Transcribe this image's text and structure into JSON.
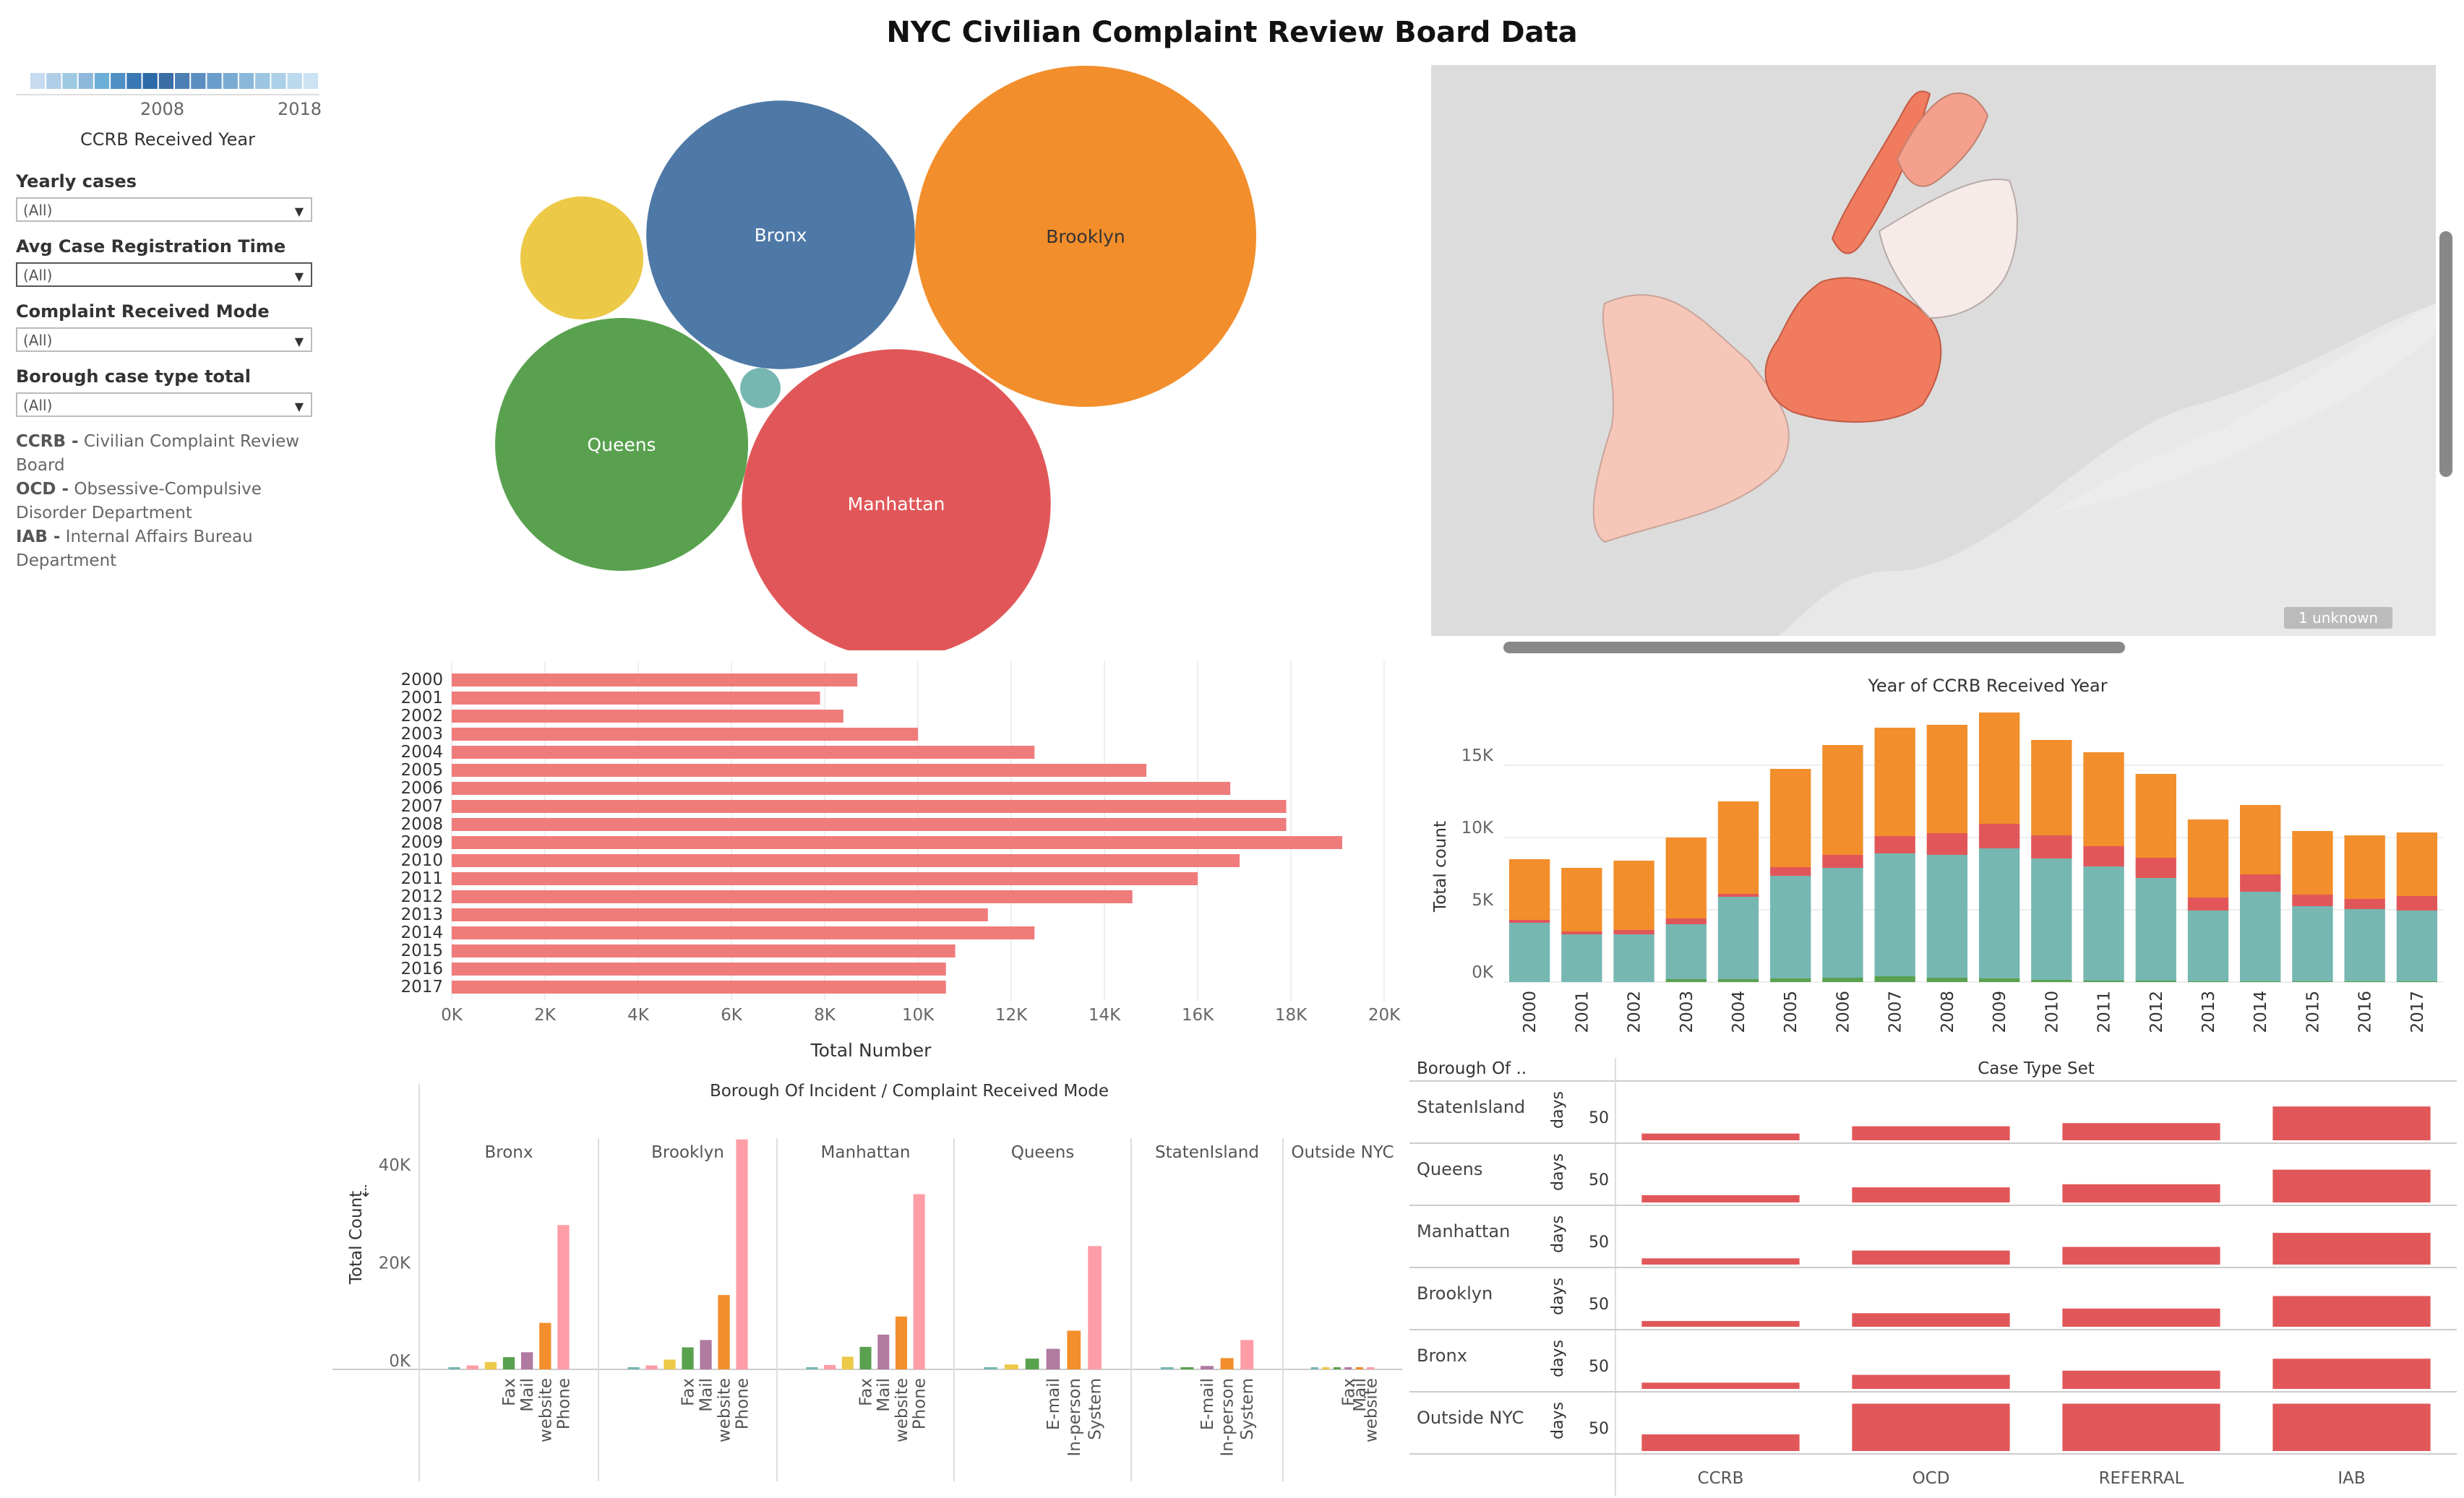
{
  "dashboard": {
    "title": "NYC Civilian Complaint Review Board Data"
  },
  "sidebar": {
    "year_slider": {
      "min_label": "2008",
      "max_label": "2018",
      "title": "CCRB Received Year",
      "colors": [
        "#c6dbef",
        "#b0cde8",
        "#9ecae1",
        "#8db8db",
        "#6baed6",
        "#4f8fc4",
        "#3a77b5",
        "#2c6aa8",
        "#3a6ea5",
        "#4d7fb5",
        "#5b8ec0",
        "#6a9dca",
        "#7aabd3",
        "#8ab8da",
        "#9bc5e1",
        "#acd0e7",
        "#bcdaed",
        "#cbe3f2"
      ]
    },
    "filters": [
      {
        "label": "Yearly cases",
        "value": "(All)"
      },
      {
        "label": "Avg Case Registration Time",
        "value": "(All)"
      },
      {
        "label": "Complaint Received Mode",
        "value": "(All)"
      },
      {
        "label": "Borough case type  total",
        "value": "(All)"
      }
    ],
    "legend": [
      {
        "abbr": "CCRB -",
        "lines": [
          " Civilian Complaint Review",
          "Board"
        ]
      },
      {
        "abbr": "OCD -",
        "lines": [
          " Obsessive-Compulsive",
          "Disorder Department"
        ]
      },
      {
        "abbr": "IAB -",
        "lines": [
          " Internal Affairs Bureau",
          "Department"
        ]
      }
    ]
  },
  "map": {
    "unknown_badge": "1 unknown"
  },
  "chart_data": [
    {
      "type": "bubble",
      "title": "Borough bubbles",
      "items": [
        {
          "label": "Brooklyn",
          "value": 100,
          "color": "#f28e2b"
        },
        {
          "label": "Manhattan",
          "value": 82,
          "color": "#e15759"
        },
        {
          "label": "Bronx",
          "value": 62,
          "color": "#4e79a7"
        },
        {
          "label": "Queens",
          "value": 55,
          "color": "#59a14f"
        },
        {
          "label": "",
          "value": 13,
          "color": "#edc948"
        },
        {
          "label": "",
          "value": 1.4,
          "color": "#76b7b2"
        }
      ]
    },
    {
      "type": "bar",
      "orientation": "horizontal",
      "xlabel": "Total Number",
      "xlim": [
        0,
        20000
      ],
      "ticks": [
        "0K",
        "2K",
        "4K",
        "6K",
        "8K",
        "10K",
        "12K",
        "14K",
        "16K",
        "18K",
        "20K"
      ],
      "color": "#f07b7b",
      "categories": [
        "2000",
        "2001",
        "2002",
        "2003",
        "2004",
        "2005",
        "2006",
        "2007",
        "2008",
        "2009",
        "2010",
        "2011",
        "2012",
        "2013",
        "2014",
        "2015",
        "2016",
        "2017"
      ],
      "values": [
        8700,
        7900,
        8400,
        10000,
        12500,
        14900,
        16700,
        17900,
        17900,
        19100,
        16900,
        16000,
        14600,
        11500,
        12500,
        10800,
        10600,
        10600
      ]
    },
    {
      "type": "bar",
      "stacked": true,
      "title": "Year of CCRB Received Year",
      "ylabel": "Total count",
      "ylim": [
        0,
        18000
      ],
      "ticks": [
        "0K",
        "5K",
        "10K",
        "15K"
      ],
      "categories": [
        "2000",
        "2001",
        "2002",
        "2003",
        "2004",
        "2005",
        "2006",
        "2007",
        "2008",
        "2009",
        "2010",
        "2011",
        "2012",
        "2013",
        "2014",
        "2015",
        "2016",
        "2017"
      ],
      "series": [
        {
          "name": "green",
          "color": "#59a14f",
          "values": [
            0,
            0,
            0,
            200,
            200,
            250,
            300,
            400,
            300,
            250,
            150,
            100,
            100,
            50,
            50,
            50,
            50,
            50
          ]
        },
        {
          "name": "teal",
          "color": "#76b7b2",
          "values": [
            4100,
            3300,
            3300,
            3800,
            5700,
            7100,
            7600,
            8500,
            8500,
            9000,
            8400,
            7900,
            7100,
            4900,
            6200,
            5200,
            5000,
            4900
          ]
        },
        {
          "name": "red",
          "color": "#e15759",
          "values": [
            200,
            200,
            300,
            400,
            200,
            600,
            900,
            1200,
            1500,
            1700,
            1600,
            1400,
            1400,
            900,
            1200,
            800,
            700,
            1000
          ]
        },
        {
          "name": "orange",
          "color": "#f28e2b",
          "values": [
            4200,
            4400,
            4800,
            5600,
            6400,
            6800,
            7600,
            7500,
            7500,
            7700,
            6600,
            6500,
            5800,
            5400,
            4800,
            4400,
            4400,
            4400
          ]
        }
      ]
    },
    {
      "type": "bar",
      "title": "Borough Of Incident  /  Complaint Received Mode",
      "ylabel": "Total Count",
      "ylim": [
        0,
        48000
      ],
      "ticks": [
        "0K",
        "20K",
        "40K"
      ],
      "panels": [
        {
          "name": "Bronx",
          "labels": [
            "Fax",
            "Mail",
            "website",
            "Phone"
          ],
          "bars": [
            {
              "v": 300,
              "c": "#76b7b2"
            },
            {
              "v": 800,
              "c": "#ff9da7"
            },
            {
              "v": 1500,
              "c": "#edc948"
            },
            {
              "v": 2500,
              "c": "#59a14f"
            },
            {
              "v": 3500,
              "c": "#b07aa1"
            },
            {
              "v": 9500,
              "c": "#f28e2b"
            },
            {
              "v": 29500,
              "c": "#ff9da7"
            }
          ]
        },
        {
          "name": "Brooklyn",
          "labels": [
            "Fax",
            "Mail",
            "website",
            "Phone"
          ],
          "bars": [
            {
              "v": 400,
              "c": "#76b7b2"
            },
            {
              "v": 800,
              "c": "#ff9da7"
            },
            {
              "v": 2000,
              "c": "#edc948"
            },
            {
              "v": 4500,
              "c": "#59a14f"
            },
            {
              "v": 6000,
              "c": "#b07aa1"
            },
            {
              "v": 15200,
              "c": "#f28e2b"
            },
            {
              "v": 47000,
              "c": "#ff9da7"
            }
          ]
        },
        {
          "name": "Manhattan",
          "labels": [
            "Fax",
            "Mail",
            "website",
            "Phone"
          ],
          "bars": [
            {
              "v": 400,
              "c": "#76b7b2"
            },
            {
              "v": 900,
              "c": "#ff9da7"
            },
            {
              "v": 2600,
              "c": "#edc948"
            },
            {
              "v": 4600,
              "c": "#59a14f"
            },
            {
              "v": 7100,
              "c": "#b07aa1"
            },
            {
              "v": 10800,
              "c": "#f28e2b"
            },
            {
              "v": 35800,
              "c": "#ff9da7"
            }
          ]
        },
        {
          "name": "Queens",
          "labels": [
            "E-mail",
            "In-person",
            "System"
          ],
          "bars": [
            {
              "v": 400,
              "c": "#76b7b2"
            },
            {
              "v": 1000,
              "c": "#edc948"
            },
            {
              "v": 2200,
              "c": "#59a14f"
            },
            {
              "v": 4200,
              "c": "#b07aa1"
            },
            {
              "v": 7900,
              "c": "#f28e2b"
            },
            {
              "v": 25200,
              "c": "#ff9da7"
            }
          ]
        },
        {
          "name": "StatenIsland",
          "labels": [
            "E-mail",
            "In-person",
            "System"
          ],
          "bars": [
            {
              "v": 150,
              "c": "#76b7b2"
            },
            {
              "v": 400,
              "c": "#59a14f"
            },
            {
              "v": 700,
              "c": "#b07aa1"
            },
            {
              "v": 2300,
              "c": "#f28e2b"
            },
            {
              "v": 6000,
              "c": "#ff9da7"
            }
          ]
        },
        {
          "name": "Outside NYC",
          "labels": [
            "Fax",
            "Mail",
            "website"
          ],
          "bars": [
            {
              "v": 50,
              "c": "#76b7b2"
            },
            {
              "v": 100,
              "c": "#edc948"
            },
            {
              "v": 100,
              "c": "#59a14f"
            },
            {
              "v": 150,
              "c": "#b07aa1"
            },
            {
              "v": 200,
              "c": "#f28e2b"
            },
            {
              "v": 400,
              "c": "#ff9da7"
            }
          ]
        }
      ]
    },
    {
      "type": "bar",
      "title": "Case Type Set",
      "row_header": "Borough Of ..",
      "unit": "days",
      "tick": "50",
      "color": "#e15759",
      "columns": [
        "CCRB",
        "OCD",
        "REFERRAL",
        "IAB"
      ],
      "rows": [
        {
          "name": "StatenIsland",
          "values": [
            13,
            27,
            33,
            65
          ]
        },
        {
          "name": "Queens",
          "values": [
            14,
            29,
            35,
            63
          ]
        },
        {
          "name": "Manhattan",
          "values": [
            12,
            27,
            34,
            61
          ]
        },
        {
          "name": "Brooklyn",
          "values": [
            11,
            26,
            35,
            59
          ]
        },
        {
          "name": "Bronx",
          "values": [
            12,
            27,
            35,
            58
          ]
        },
        {
          "name": "Outside NYC",
          "values": [
            32,
            91,
            91,
            91
          ]
        }
      ]
    }
  ]
}
